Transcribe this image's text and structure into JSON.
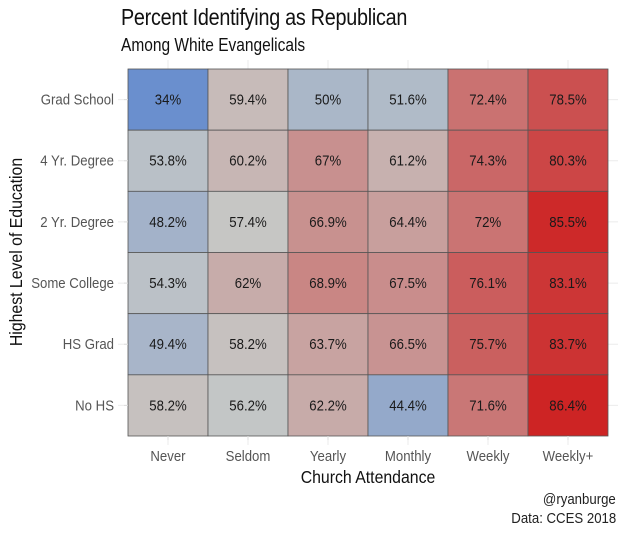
{
  "chart_data": {
    "type": "heatmap",
    "title": "Percent Identifying as Republican",
    "subtitle": "Among White Evangelicals",
    "xlabel": "Church Attendance",
    "ylabel": "Highest Level of Education",
    "x_categories": [
      "Never",
      "Seldom",
      "Yearly",
      "Monthly",
      "Weekly",
      "Weekly+"
    ],
    "y_categories": [
      "Grad School",
      "4 Yr. Degree",
      "2 Yr. Degree",
      "Some College",
      "HS Grad",
      "No HS"
    ],
    "values": [
      [
        34.0,
        59.4,
        50.0,
        51.6,
        72.4,
        78.5
      ],
      [
        53.8,
        60.2,
        67.0,
        61.2,
        74.3,
        80.3
      ],
      [
        48.2,
        57.4,
        66.9,
        64.4,
        72.0,
        85.5
      ],
      [
        54.3,
        62.0,
        68.9,
        67.5,
        76.1,
        83.1
      ],
      [
        49.4,
        58.2,
        63.7,
        66.5,
        75.7,
        83.7
      ],
      [
        58.2,
        56.2,
        62.2,
        44.4,
        71.6,
        86.4
      ]
    ],
    "labels": [
      [
        "34%",
        "59.4%",
        "50%",
        "51.6%",
        "72.4%",
        "78.5%"
      ],
      [
        "53.8%",
        "60.2%",
        "67%",
        "61.2%",
        "74.3%",
        "80.3%"
      ],
      [
        "48.2%",
        "57.4%",
        "66.9%",
        "64.4%",
        "72%",
        "85.5%"
      ],
      [
        "54.3%",
        "62%",
        "68.9%",
        "67.5%",
        "76.1%",
        "83.1%"
      ],
      [
        "49.4%",
        "58.2%",
        "63.7%",
        "66.5%",
        "75.7%",
        "83.7%"
      ],
      [
        "58.2%",
        "56.2%",
        "62.2%",
        "44.4%",
        "71.6%",
        "86.4%"
      ]
    ],
    "color_scale": {
      "low": "#6a8fce",
      "mid": "#c6c8c6",
      "high": "#cd2424",
      "low_value": 34,
      "mid_value": 57,
      "high_value": 86.4
    },
    "legend": "none",
    "grid": true
  },
  "caption": {
    "line1": "@ryanburge",
    "line2": "Data: CCES 2018"
  }
}
